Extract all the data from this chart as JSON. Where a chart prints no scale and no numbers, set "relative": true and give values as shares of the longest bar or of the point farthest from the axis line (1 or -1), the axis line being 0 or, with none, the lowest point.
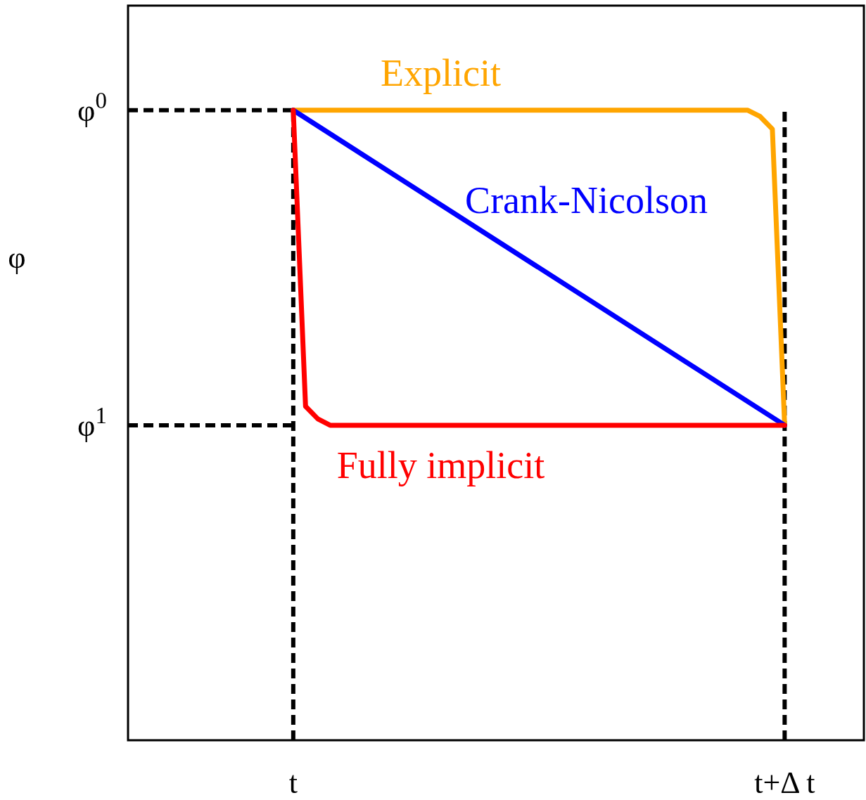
{
  "chart_data": {
    "type": "line",
    "ylabel": "φ",
    "relative": true,
    "marker": "none",
    "line_style": "solid",
    "categories": [
      null,
      null,
      null,
      null,
      null,
      null,
      null,
      null,
      null,
      null,
      null,
      null,
      null,
      "t",
      null,
      null,
      null,
      null,
      null,
      null,
      null,
      null,
      null,
      null,
      null,
      null,
      null,
      null,
      null,
      null,
      null,
      null,
      null,
      null,
      null,
      null,
      null,
      null,
      null,
      null,
      null,
      null,
      null,
      null,
      null,
      null,
      null,
      null,
      null,
      null,
      null,
      null,
      null,
      "t+Δ t",
      null,
      null,
      null,
      null,
      null,
      null
    ],
    "ref_lines": [
      {
        "axis": "x",
        "value": "t",
        "color": "#000000",
        "line_style": "dashed"
      },
      {
        "axis": "x",
        "value": "t+Δ t",
        "color": "#000000",
        "line_style": "dashed"
      },
      {
        "axis": "y",
        "value": 1,
        "label": "φ$^{0}$",
        "color": "#000000",
        "line_style": "dashed"
      },
      {
        "axis": "y",
        "value": 0.5,
        "label": "φ$^{1}$",
        "color": "#000000",
        "line_style": "dashed"
      }
    ],
    "series": [
      {
        "name": "Explicit",
        "color": "#ffa500",
        "values": [
          null,
          null,
          null,
          null,
          null,
          null,
          null,
          null,
          null,
          null,
          null,
          null,
          null,
          1,
          null,
          null,
          null,
          null,
          null,
          null,
          null,
          null,
          null,
          null,
          null,
          null,
          null,
          null,
          null,
          null,
          null,
          null,
          null,
          null,
          null,
          null,
          null,
          null,
          null,
          null,
          null,
          null,
          null,
          null,
          null,
          null,
          null,
          null,
          null,
          null,
          1,
          0.99,
          0.97,
          0.5,
          null,
          null,
          null,
          null,
          null,
          null
        ]
      },
      {
        "name": "Crank-Nicolson",
        "color": "#0000ff",
        "values": [
          null,
          null,
          null,
          null,
          null,
          null,
          null,
          null,
          null,
          null,
          null,
          null,
          null,
          1,
          null,
          null,
          null,
          null,
          null,
          null,
          null,
          null,
          null,
          null,
          null,
          null,
          null,
          null,
          null,
          null,
          null,
          null,
          null,
          null,
          null,
          null,
          null,
          null,
          null,
          null,
          null,
          null,
          null,
          null,
          null,
          null,
          null,
          null,
          null,
          null,
          null,
          null,
          null,
          0.5,
          null,
          null,
          null,
          null,
          null,
          null
        ]
      },
      {
        "name": "Fully implicit",
        "color": "#ff0000",
        "values": [
          null,
          null,
          null,
          null,
          null,
          null,
          null,
          null,
          null,
          null,
          null,
          null,
          null,
          1,
          0.53,
          0.51,
          0.5,
          null,
          null,
          null,
          null,
          null,
          null,
          null,
          null,
          null,
          null,
          null,
          null,
          null,
          null,
          null,
          null,
          null,
          null,
          null,
          null,
          null,
          null,
          null,
          null,
          null,
          null,
          null,
          null,
          null,
          null,
          null,
          null,
          null,
          null,
          null,
          null,
          0.5,
          null,
          null,
          null,
          null,
          null,
          null
        ]
      }
    ]
  }
}
